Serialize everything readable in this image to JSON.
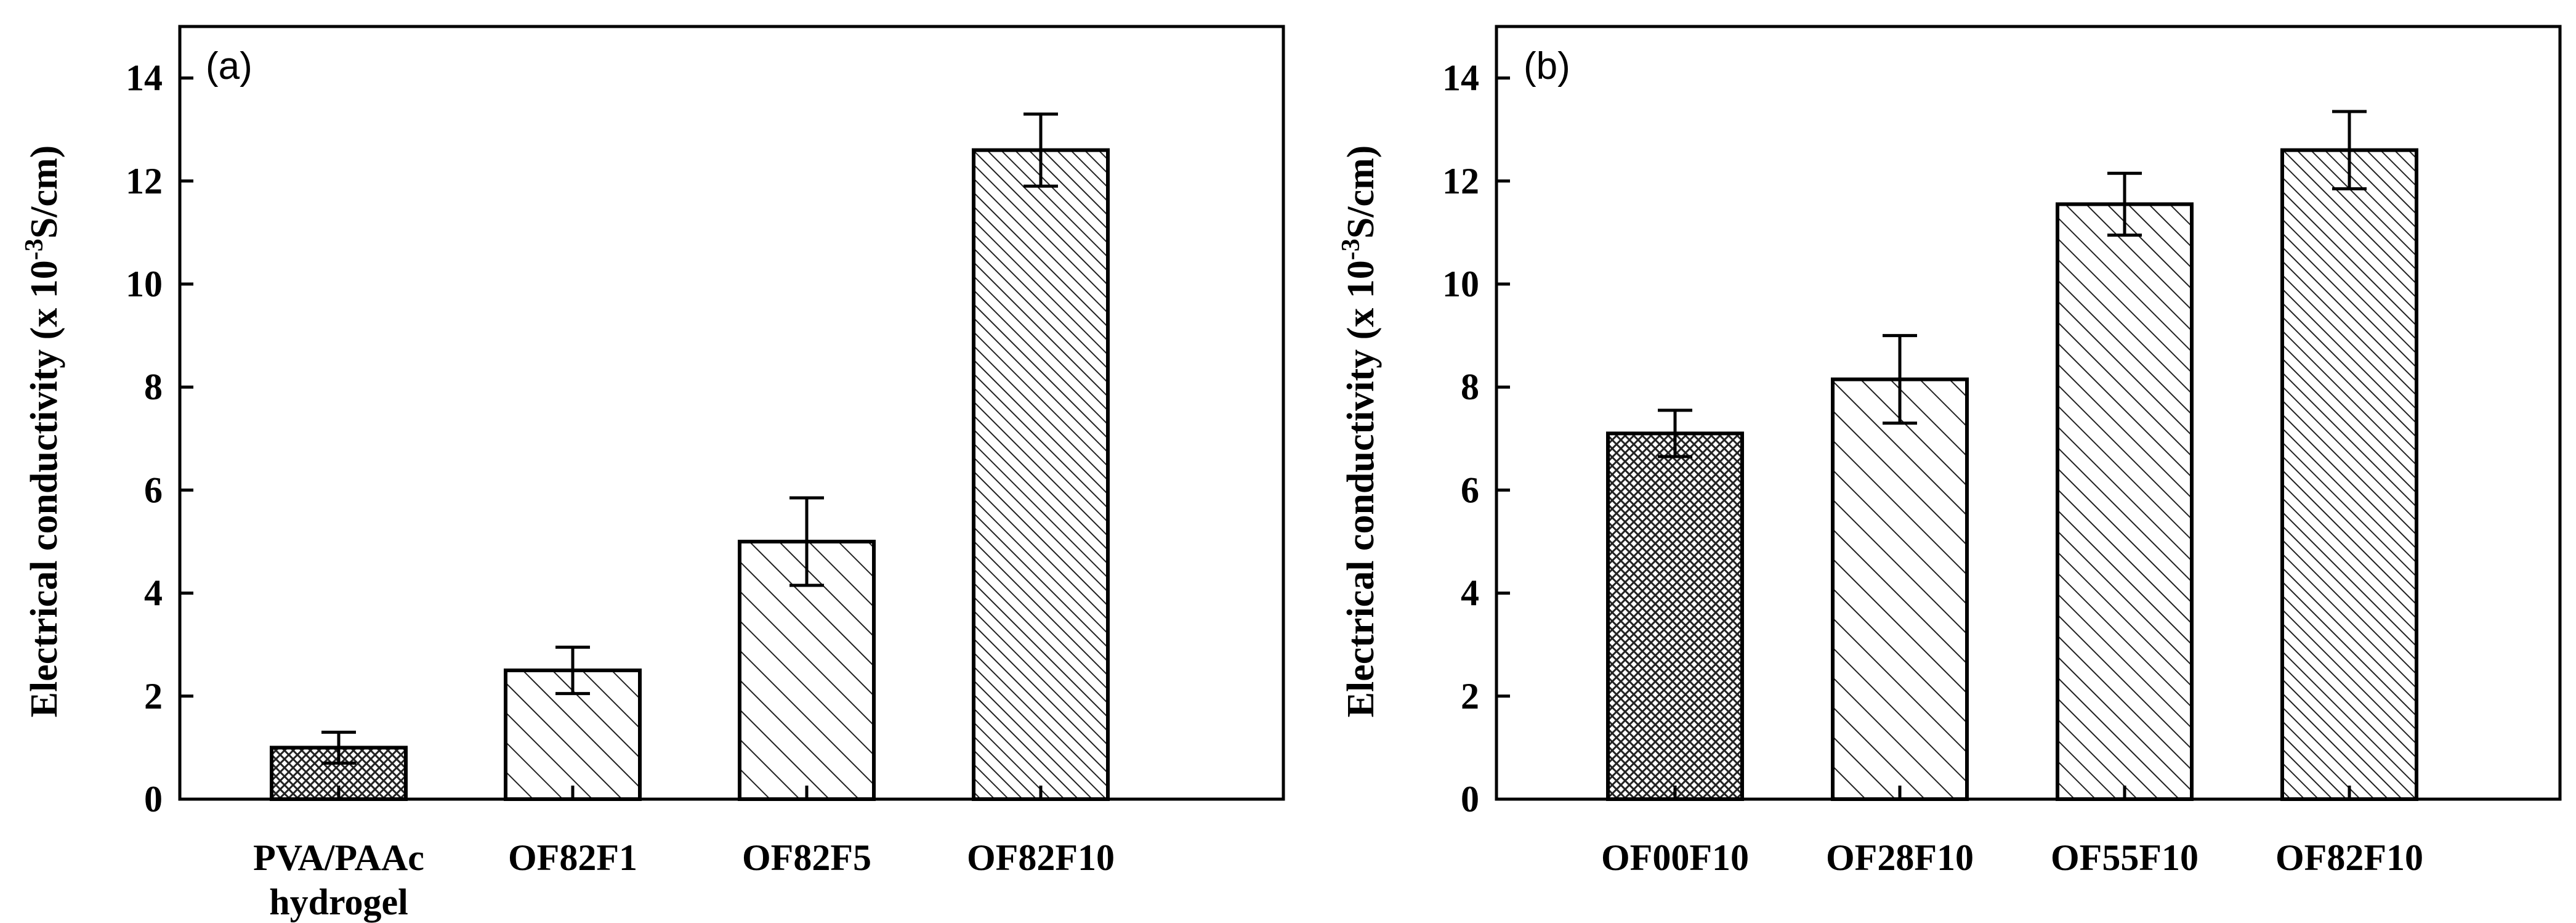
{
  "chart_data": [
    {
      "type": "bar",
      "panel_label": "(a)",
      "categories": [
        [
          "PVA/PAAc",
          "hydrogel"
        ],
        [
          "OF82F1"
        ],
        [
          "OF82F5"
        ],
        [
          "OF82F10"
        ]
      ],
      "values": [
        1.0,
        2.5,
        5.0,
        12.6
      ],
      "errors": [
        0.3,
        0.45,
        0.85,
        0.7
      ],
      "patterns": [
        "crosshatch",
        "diag-wide",
        "diag-wide",
        "diag-dense"
      ],
      "ylabel": {
        "main": "Electrical conductivity (x 10",
        "sup": "-3",
        "tail": "S/cm)"
      },
      "xlabel": "",
      "ylim": [
        0,
        15
      ],
      "yticks": [
        0,
        2,
        4,
        6,
        8,
        10,
        12,
        14
      ],
      "grid": false
    },
    {
      "type": "bar",
      "panel_label": "(b)",
      "categories": [
        [
          "OF00F10"
        ],
        [
          "OF28F10"
        ],
        [
          "OF55F10"
        ],
        [
          "OF82F10"
        ]
      ],
      "values": [
        7.1,
        8.15,
        11.55,
        12.6
      ],
      "errors": [
        0.45,
        0.85,
        0.6,
        0.75
      ],
      "patterns": [
        "crosshatch",
        "diag-wide",
        "diag-medium",
        "diag-dense"
      ],
      "ylabel": {
        "main": "Electrical conductivity (x 10",
        "sup": "-3",
        "tail": "S/cm)"
      },
      "xlabel": "",
      "ylim": [
        0,
        15
      ],
      "yticks": [
        0,
        2,
        4,
        6,
        8,
        10,
        12,
        14
      ],
      "grid": false
    }
  ]
}
